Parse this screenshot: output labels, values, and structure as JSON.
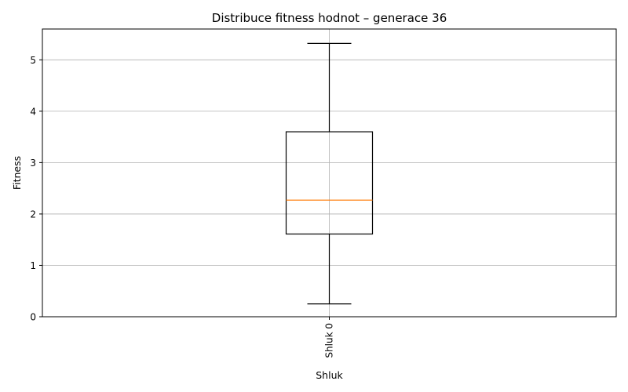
{
  "chart_data": {
    "type": "box",
    "title": "Distribuce fitness hodnot – generace 36",
    "xlabel": "Shluk",
    "ylabel": "Fitness",
    "ylim": [
      0,
      5.6
    ],
    "yticks": [
      0,
      1,
      2,
      3,
      4,
      5
    ],
    "ytick_labels": [
      "0",
      "1",
      "2",
      "3",
      "4",
      "5"
    ],
    "grid": true,
    "categories": [
      "Shluk 0"
    ],
    "boxes": [
      {
        "label": "Shluk 0",
        "whisker_low": 0.25,
        "q1": 1.61,
        "median": 2.27,
        "q3": 3.6,
        "whisker_high": 5.32
      }
    ],
    "colors": {
      "box": "#000000",
      "median": "#ff7f0e",
      "grid": "#b0b0b0"
    }
  }
}
